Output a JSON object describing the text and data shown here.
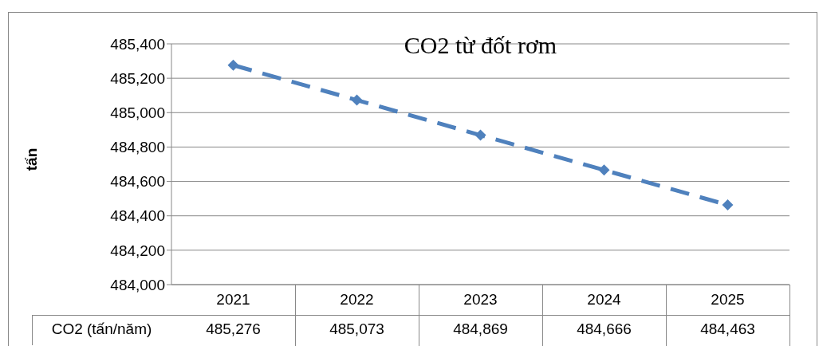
{
  "chart_data": {
    "type": "line",
    "title": "CO2 từ đốt rơm",
    "ylabel": "tấn",
    "categories": [
      "2021",
      "2022",
      "2023",
      "2024",
      "2025"
    ],
    "series": [
      {
        "name": "CO2 (tấn/năm)",
        "color": "#4f81bd",
        "values": [
          485276,
          485073,
          484869,
          484666,
          484463
        ],
        "value_labels": [
          "485,276",
          "485,073",
          "484,869",
          "484,666",
          "484,463"
        ]
      }
    ],
    "ylim": [
      484000,
      485400
    ],
    "yticks": [
      {
        "value": 484000,
        "label": "484,000"
      },
      {
        "value": 484200,
        "label": "484,200"
      },
      {
        "value": 484400,
        "label": "484,400"
      },
      {
        "value": 484600,
        "label": "484,600"
      },
      {
        "value": 484800,
        "label": "484,800"
      },
      {
        "value": 485000,
        "label": "485,000"
      },
      {
        "value": 485200,
        "label": "485,200"
      },
      {
        "value": 485400,
        "label": "485,400"
      }
    ],
    "grid": "y",
    "marker": "diamond",
    "line_style": "dashed"
  }
}
